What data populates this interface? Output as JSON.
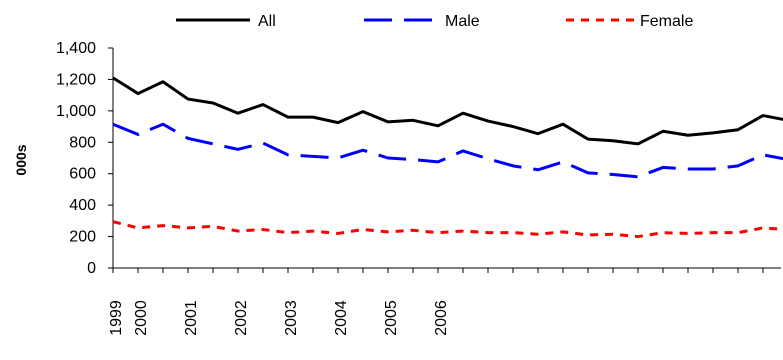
{
  "chart_data": {
    "type": "line",
    "ylabel": "000s",
    "xlabel": "",
    "ylim": [
      0,
      1400
    ],
    "yticks": [
      0,
      200,
      400,
      600,
      800,
      1000,
      1200,
      1400
    ],
    "ytick_labels": [
      "0",
      "200",
      "400",
      "600",
      "800",
      "1,000",
      "1,200",
      "1,400"
    ],
    "x_year_labels": [
      "1999",
      "2000",
      "2001",
      "2002",
      "2003",
      "2004",
      "2005",
      "2006"
    ],
    "x_year_positions": [
      0,
      1,
      3,
      5,
      7,
      9,
      11,
      13
    ],
    "x_points_per_year": 4,
    "grid": false,
    "legend_position": "top",
    "series": [
      {
        "name": "All",
        "color": "#000000",
        "style": "solid",
        "values": [
          1210,
          1110,
          1185,
          1075,
          1050,
          985,
          1040,
          960,
          960,
          925,
          995,
          930,
          940,
          905,
          985,
          935,
          900,
          855,
          915,
          820,
          810,
          790,
          870,
          845,
          860,
          880,
          970,
          940
        ]
      },
      {
        "name": "Male",
        "color": "#0000ff",
        "style": "dashed",
        "values": [
          915,
          850,
          915,
          825,
          790,
          755,
          795,
          720,
          710,
          700,
          750,
          700,
          690,
          675,
          745,
          695,
          650,
          625,
          675,
          605,
          595,
          580,
          640,
          630,
          630,
          650,
          720,
          690
        ]
      },
      {
        "name": "Female",
        "color": "#ff0000",
        "style": "dotted",
        "values": [
          295,
          255,
          270,
          255,
          265,
          235,
          245,
          225,
          235,
          220,
          245,
          230,
          240,
          225,
          235,
          225,
          225,
          215,
          230,
          210,
          215,
          200,
          225,
          220,
          225,
          225,
          255,
          245
        ]
      }
    ]
  }
}
